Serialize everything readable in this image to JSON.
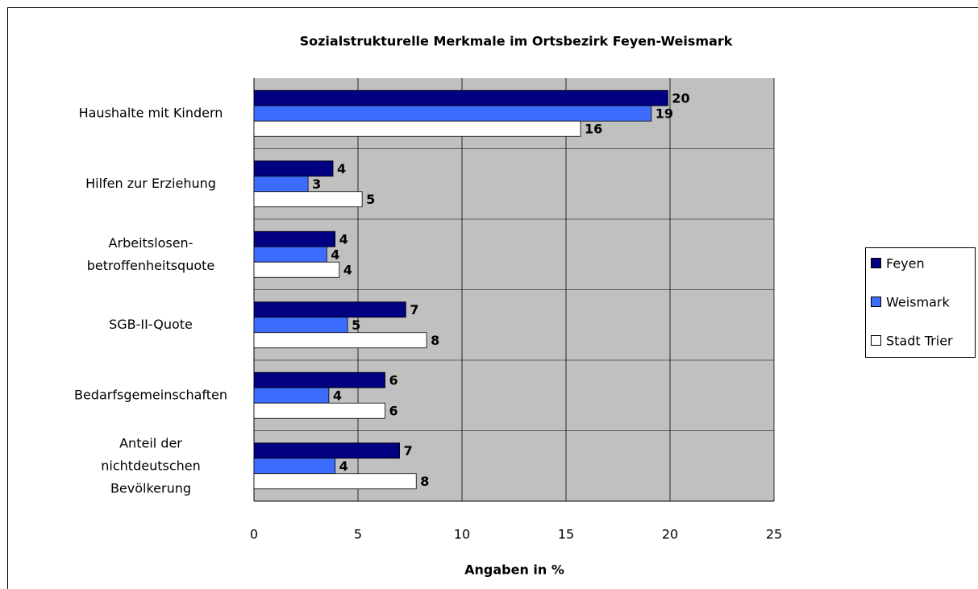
{
  "chart_data": {
    "type": "bar",
    "orientation": "horizontal",
    "title": "Sozialstrukturelle Merkmale im Ortsbezirk Feyen-Weismark",
    "x_label": "Angaben in %",
    "categories": [
      "Haushalte mit Kindern",
      "Hilfen zur Erziehung",
      "Arbeitslosen-\nbetroffenheitsquote",
      "SGB-II-Quote",
      "Bedarfsgemeinschaften",
      "Anteil der\nnichtdeutschen\nBevölkerung"
    ],
    "series": [
      {
        "name": "Feyen",
        "color": "#000080",
        "values": [
          19.9,
          3.8,
          3.9,
          7.3,
          6.3,
          7.0
        ],
        "value_labels": [
          "20",
          "4",
          "4",
          "7",
          "6",
          "7"
        ]
      },
      {
        "name": "Weismark",
        "color": "#3d6dff",
        "values": [
          19.1,
          2.6,
          3.5,
          4.5,
          3.6,
          3.9
        ],
        "value_labels": [
          "19",
          "3",
          "4",
          "5",
          "4",
          "4"
        ]
      },
      {
        "name": "Stadt Trier",
        "color": "#ffffff",
        "values": [
          15.7,
          5.2,
          4.1,
          8.3,
          6.3,
          7.8
        ],
        "value_labels": [
          "16",
          "5",
          "4",
          "8",
          "6",
          "8"
        ]
      }
    ],
    "xlim": [
      0,
      25
    ],
    "xticks": [
      0,
      5,
      10,
      15,
      20,
      25
    ],
    "grid": true,
    "legend": "right"
  }
}
